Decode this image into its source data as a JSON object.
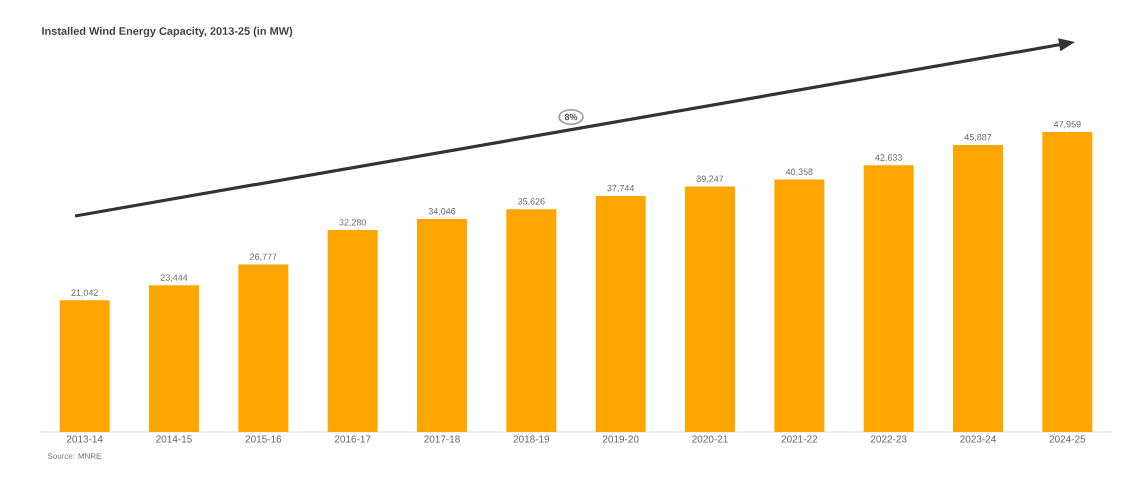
{
  "chart_data": {
    "type": "bar",
    "title": "Installed Wind Energy Capacity, 2013-25 (in MW)",
    "categories": [
      "2013-14",
      "2014-15",
      "2015-16",
      "2016-17",
      "2017-18",
      "2018-19",
      "2019-20",
      "2020-21",
      "2021-22",
      "2022-23",
      "2023-24",
      "2024-25"
    ],
    "values": [
      21042,
      23444,
      26777,
      32280,
      34046,
      35626,
      37744,
      39247,
      40358,
      42633,
      45887,
      47959
    ],
    "value_labels": [
      "21,042",
      "23,444",
      "26,777",
      "32,280",
      "34,046",
      "35,626",
      "37,744",
      "39,247",
      "40,358",
      "42,633",
      "45,887",
      "47,959"
    ],
    "color": "#ffa500",
    "annotations": [
      "8%",
      "Source: MNRE"
    ]
  }
}
